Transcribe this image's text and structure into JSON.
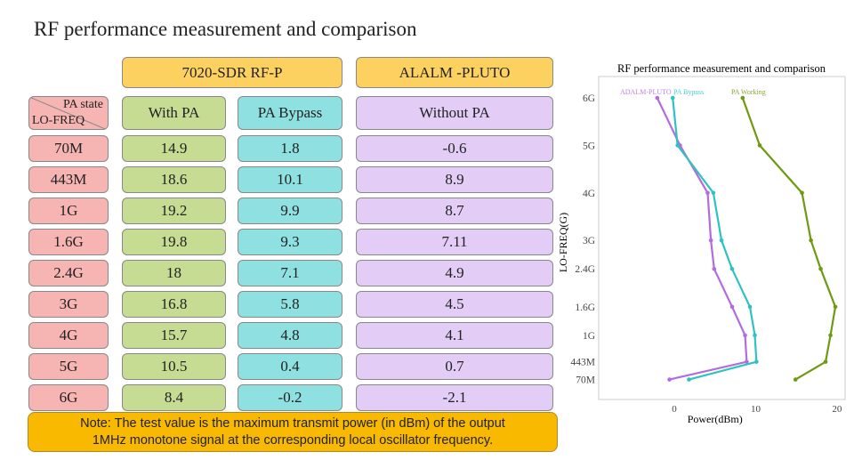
{
  "title": "RF performance measurement and comparison",
  "groups": {
    "sdr": "7020-SDR RF-P",
    "pluto": "ALALM -PLUTO"
  },
  "header": {
    "pa_state": "PA state",
    "lo_freq": "LO-FREQ",
    "with_pa": "With PA",
    "pa_bypass": "PA Bypass",
    "without_pa": "Without PA"
  },
  "rows": [
    {
      "freq": "70M",
      "with_pa": "14.9",
      "pa_bypass": "1.8",
      "without_pa": "-0.6"
    },
    {
      "freq": "443M",
      "with_pa": "18.6",
      "pa_bypass": "10.1",
      "without_pa": "8.9"
    },
    {
      "freq": "1G",
      "with_pa": "19.2",
      "pa_bypass": "9.9",
      "without_pa": "8.7"
    },
    {
      "freq": "1.6G",
      "with_pa": "19.8",
      "pa_bypass": "9.3",
      "without_pa": "7.11"
    },
    {
      "freq": "2.4G",
      "with_pa": "18",
      "pa_bypass": "7.1",
      "without_pa": "4.9"
    },
    {
      "freq": "3G",
      "with_pa": "16.8",
      "pa_bypass": "5.8",
      "without_pa": "4.5"
    },
    {
      "freq": "4G",
      "with_pa": "15.7",
      "pa_bypass": "4.8",
      "without_pa": "4.1"
    },
    {
      "freq": "5G",
      "with_pa": "10.5",
      "pa_bypass": "0.4",
      "without_pa": "0.7"
    },
    {
      "freq": "6G",
      "with_pa": "8.4",
      "pa_bypass": "-0.2",
      "without_pa": "-2.1"
    }
  ],
  "note": {
    "line1": "Note: The test value is the maximum transmit power (in dBm) of the output",
    "line2": "1MHz monotone signal at the corresponding local oscillator frequency."
  },
  "chart_data": {
    "type": "line",
    "title": "RF performance measurement and comparison",
    "xlabel": "Power(dBm)",
    "ylabel": "LO-FREQ(G)",
    "xlim": [
      -9.3,
      21
    ],
    "ylim_ghz": [
      -0.35,
      6.45
    ],
    "xticks": [
      0,
      10,
      20
    ],
    "y_categories": [
      "70M",
      "443M",
      "1G",
      "1.6G",
      "2.4G",
      "3G",
      "4G",
      "5G",
      "6G"
    ],
    "y_values_ghz": [
      0.07,
      0.443,
      1,
      1.6,
      2.4,
      3,
      4,
      5,
      6
    ],
    "grid": false,
    "legend_placement": "top",
    "series": [
      {
        "name": "ADALM-PLUTO",
        "color": "#b36be0",
        "values": [
          -0.6,
          8.9,
          8.7,
          7.11,
          4.9,
          4.5,
          4.1,
          0.7,
          -2.1
        ]
      },
      {
        "name": "PA Bypass",
        "color": "#2fc2c2",
        "values": [
          1.8,
          10.1,
          9.9,
          9.3,
          7.1,
          5.8,
          4.8,
          0.4,
          -0.2
        ]
      },
      {
        "name": "PA Working",
        "color": "#6e9a12",
        "values": [
          14.9,
          18.6,
          19.2,
          19.8,
          18,
          16.8,
          15.7,
          10.5,
          8.4
        ]
      }
    ]
  }
}
